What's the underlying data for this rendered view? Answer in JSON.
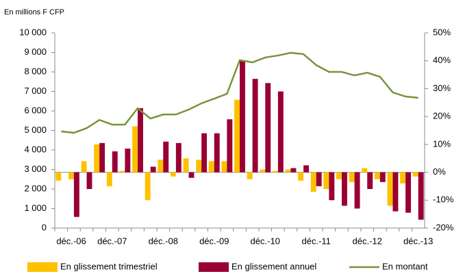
{
  "chart_data": {
    "type": "bar-line",
    "y_label": "En millions F CFP",
    "categories": [
      "déc.-06",
      null,
      null,
      null,
      "déc.-07",
      null,
      null,
      null,
      "déc.-08",
      null,
      null,
      null,
      "déc.-09",
      null,
      null,
      null,
      "déc.-10",
      null,
      null,
      null,
      "déc.-11",
      null,
      null,
      null,
      "déc.-12",
      null,
      null,
      null,
      "déc.-13"
    ],
    "series": [
      {
        "name": "En glissement trimestriel",
        "color": "#ffc000",
        "axis": "y2",
        "kind": "bar",
        "values": [
          -3,
          -2.5,
          4,
          10,
          -5,
          0.5,
          16.5,
          -10,
          4.5,
          -1.5,
          5,
          4.5,
          4,
          4,
          26,
          -2.5,
          1,
          0.5,
          1,
          -3,
          -7,
          -6,
          -2.5,
          -3.5,
          1.5,
          -2.5,
          -12,
          -4,
          -1.5
        ]
      },
      {
        "name": "En glissement annuel",
        "color": "#990033",
        "axis": "y2",
        "kind": "bar",
        "values": [
          null,
          -16,
          -6,
          10.5,
          7.5,
          8.5,
          23,
          2,
          11,
          10.5,
          -2,
          14,
          14,
          19,
          40,
          33.5,
          32,
          29,
          1.5,
          2.5,
          -5,
          -10,
          -12,
          -13,
          -6,
          -3.5,
          -14,
          -14.5,
          -17
        ]
      },
      {
        "name": "En montant",
        "color": "#77933c",
        "kind": "line",
        "values": [
          4950,
          4880,
          5120,
          5540,
          5300,
          5300,
          6140,
          5610,
          5820,
          5820,
          6070,
          6390,
          6630,
          6880,
          8600,
          8490,
          8740,
          8840,
          8980,
          8910,
          8350,
          8000,
          8000,
          7820,
          7960,
          7750,
          6950,
          6740,
          6670
        ]
      }
    ],
    "ylim": [
      0,
      10000
    ],
    "yticks": [
      0,
      {
        "value": 1000,
        "label": "1 000"
      },
      {
        "value": 2000,
        "label": "2 000"
      },
      {
        "value": 3000,
        "label": "3 000"
      },
      {
        "value": 4000,
        "label": "4 000"
      },
      {
        "value": 5000,
        "label": "5 000"
      },
      {
        "value": 6000,
        "label": "6 000"
      },
      {
        "value": 7000,
        "label": "7 000"
      },
      {
        "value": 8000,
        "label": "8 000"
      },
      {
        "value": 9000,
        "label": "9 000"
      },
      {
        "value": 10000,
        "label": "10 000"
      }
    ],
    "y2lim": [
      -20,
      50
    ],
    "y2ticks": [
      {
        "value": -20,
        "label": "-20%"
      },
      {
        "value": -10,
        "label": "-10%"
      },
      {
        "value": 0,
        "label": "0%"
      },
      {
        "value": 10,
        "label": "10%"
      },
      {
        "value": 20,
        "label": "20%"
      },
      {
        "value": 30,
        "label": "30%"
      },
      {
        "value": 40,
        "label": "40%"
      },
      {
        "value": 50,
        "label": "50%"
      }
    ],
    "legend": "bottom"
  }
}
